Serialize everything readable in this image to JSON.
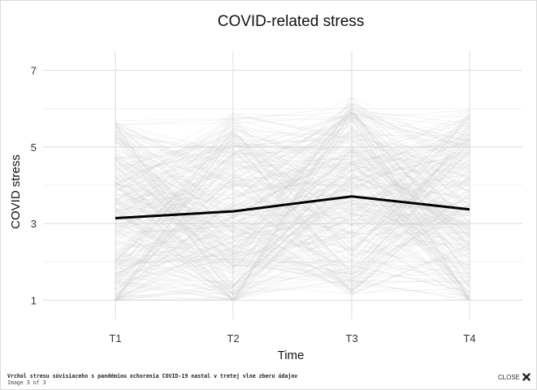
{
  "lightbox": {
    "caption": "Vrchol stresu súvisiaceho s pandémiou ochorenia COVID-19 nastal v tretej vlne zberu údajov",
    "counter": "Image 3 of 3",
    "close_label": "CLOSE",
    "close_icon": "close-icon"
  },
  "chart_data": {
    "type": "line",
    "title": "COVID-related stress",
    "xlabel": "Time",
    "ylabel": "COVID stress",
    "categories": [
      "T1",
      "T2",
      "T3",
      "T4"
    ],
    "ylim": [
      0.5,
      7.5
    ],
    "yticks": [
      1,
      3,
      5,
      7
    ],
    "grid": true,
    "series": [
      {
        "values": [
          3.14,
          3.32,
          3.71,
          3.37
        ],
        "color": "#000000"
      }
    ],
    "background_lines": {
      "count": 300,
      "range": [
        1,
        7
      ],
      "color": "#cccccc"
    }
  }
}
